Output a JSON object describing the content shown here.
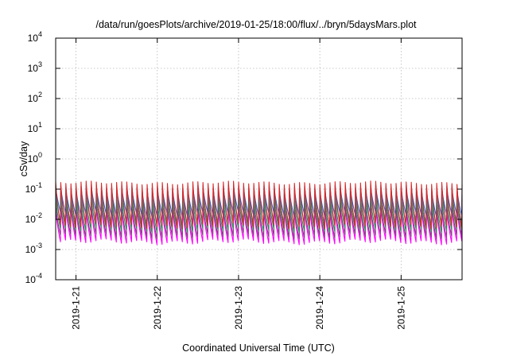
{
  "chart_data": {
    "type": "line",
    "title": "/data/run/goesPlots/archive/2019-01-25/18:00/flux/../bryn/5daysMars.plot",
    "xlabel": "Coordinated Universal Time (UTC)",
    "ylabel": "cSv/day",
    "y_scale": "log",
    "ylim": [
      0.0001,
      10000
    ],
    "y_ticks": [
      {
        "base": "10",
        "exp": "-4",
        "value": 0.0001
      },
      {
        "base": "10",
        "exp": "-3",
        "value": 0.001
      },
      {
        "base": "10",
        "exp": "-2",
        "value": 0.01
      },
      {
        "base": "10",
        "exp": "-1",
        "value": 0.1
      },
      {
        "base": "10",
        "exp": "0",
        "value": 1
      },
      {
        "base": "10",
        "exp": "1",
        "value": 10
      },
      {
        "base": "10",
        "exp": "2",
        "value": 100
      },
      {
        "base": "10",
        "exp": "3",
        "value": 1000
      },
      {
        "base": "10",
        "exp": "4",
        "value": 10000
      }
    ],
    "xlim": [
      "2019-01-20T18:00",
      "2019-01-25T18:00"
    ],
    "x_ticks": [
      {
        "label": "2019-1-21",
        "date": "2019-01-21T00:00"
      },
      {
        "label": "2019-1-22",
        "date": "2019-01-22T00:00"
      },
      {
        "label": "2019-1-23",
        "date": "2019-01-23T00:00"
      },
      {
        "label": "2019-1-24",
        "date": "2019-01-24T00:00"
      },
      {
        "label": "2019-1-25",
        "date": "2019-01-25T00:00"
      }
    ],
    "grid": true,
    "legend": "none",
    "sawtooth_period_hours": 1.5,
    "series": [
      {
        "color": "#d62728",
        "peak": 0.16,
        "trough": 0.006
      },
      {
        "color": "#2a63c9",
        "peak": 0.12,
        "trough": 0.015
      },
      {
        "color": "#1aa6a6",
        "peak": 0.07,
        "trough": 0.008
      },
      {
        "color": "#2e8b57",
        "peak": 0.05,
        "trough": 0.0045
      },
      {
        "color": "#8b3a8b",
        "peak": 0.03,
        "trough": 0.0028
      },
      {
        "color": "#ff00ff",
        "peak": 0.025,
        "trough": 0.0018
      }
    ]
  }
}
